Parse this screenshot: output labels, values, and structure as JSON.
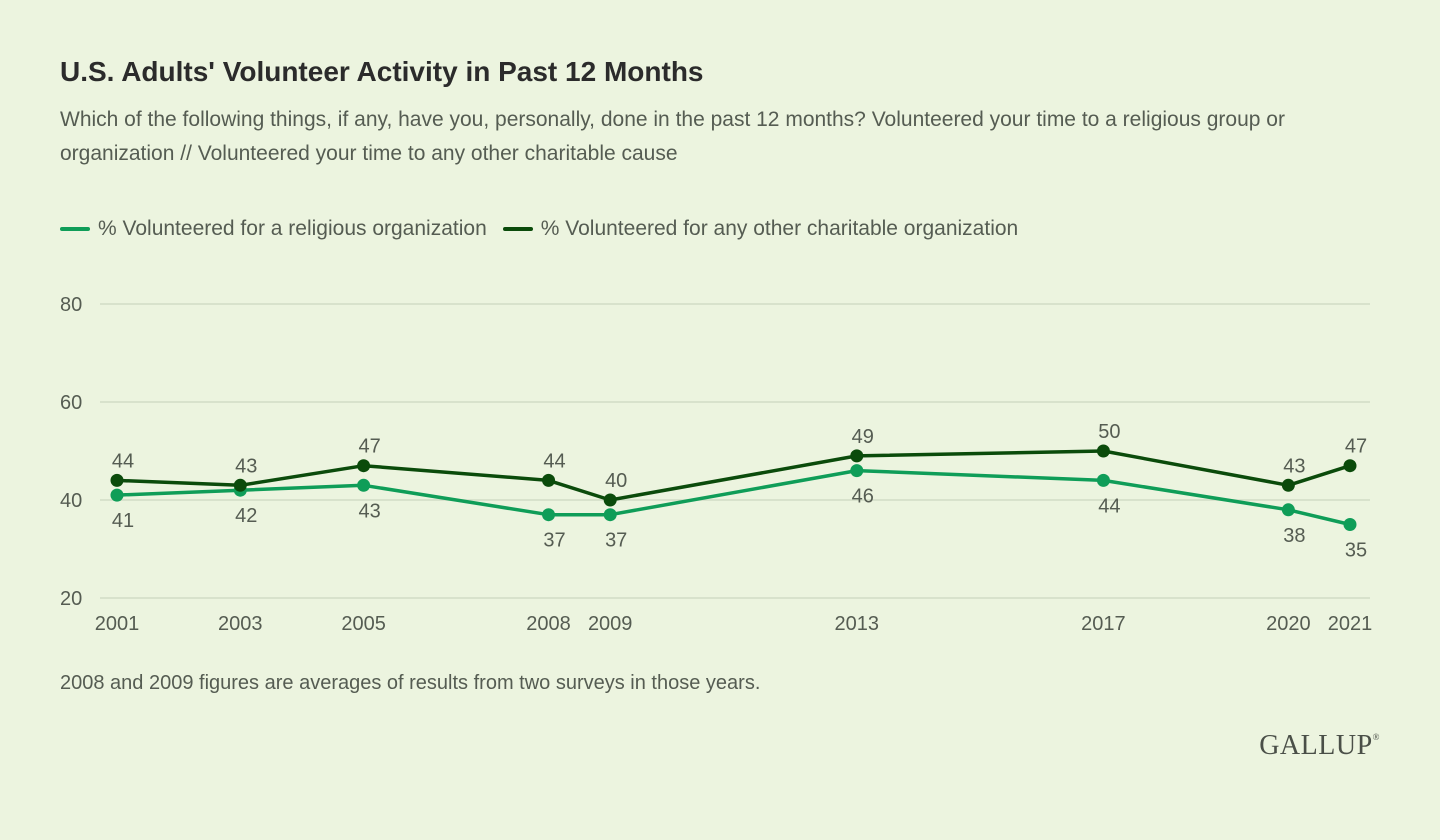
{
  "chart_data": {
    "type": "line",
    "title": "U.S. Adults' Volunteer Activity in Past 12 Months",
    "subtitle": "Which of the following things, if any, have you, personally, done in the past 12 months? Volunteered your time to a religious group or organization // Volunteered your time to any other charitable cause",
    "x": [
      2001,
      2003,
      2005,
      2008,
      2009,
      2013,
      2017,
      2020,
      2021
    ],
    "x_tick_labels": [
      "2001",
      "2003",
      "2005",
      "2008",
      "2009",
      "2013",
      "2017",
      "2020",
      "2021"
    ],
    "y_ticks": [
      20,
      40,
      60,
      80
    ],
    "ylim": [
      20,
      80
    ],
    "xlabel": "",
    "ylabel": "",
    "grid": true,
    "legend_position": "top-left",
    "series": [
      {
        "name": "% Volunteered for a religious organization",
        "color": "#0f9d58",
        "values": [
          41,
          42,
          43,
          37,
          37,
          46,
          44,
          38,
          35
        ],
        "label_side": "below"
      },
      {
        "name": "% Volunteered for any other charitable organization",
        "color": "#0b4b0b",
        "values": [
          44,
          43,
          47,
          44,
          40,
          49,
          50,
          43,
          47
        ],
        "label_side": "above"
      }
    ],
    "footnote": "2008 and 2009 figures are averages of results from two surveys in those years."
  },
  "brand": {
    "name": "GALLUP",
    "mark": "®"
  },
  "colors": {
    "background": "#ecf4df",
    "gridline": "#d2dcc6",
    "text": "#555c52"
  }
}
